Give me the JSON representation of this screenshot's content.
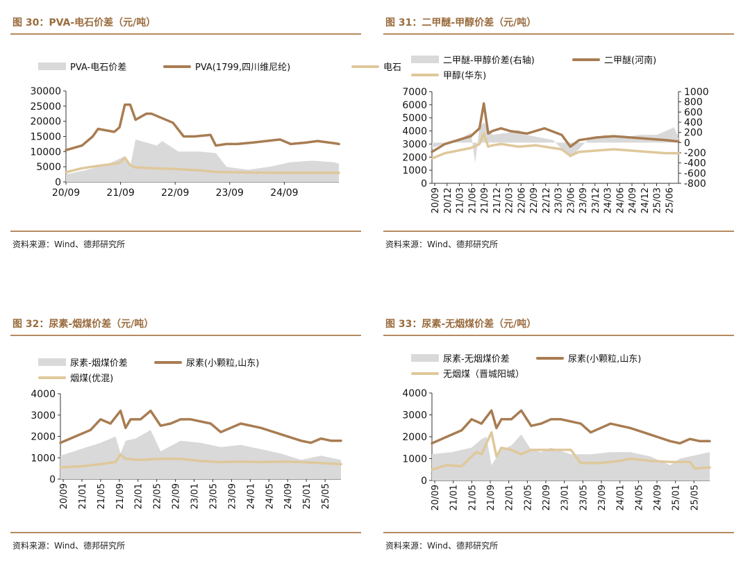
{
  "panels": {
    "p30": {
      "title": "图 30：PVA-电石价差（元/吨）",
      "source": "资料来源：Wind、德邦研究所"
    },
    "p31": {
      "title": "图 31：二甲醚-甲醇价差（元/吨）",
      "source": "资料来源：Wind、德邦研究所"
    },
    "p32": {
      "title": "图 32：尿素-烟煤价差（元/吨）",
      "source": "资料来源：Wind、德邦研究所"
    },
    "p33": {
      "title": "图 33：尿素-无烟煤价差（元/吨）",
      "source": "资料来源：Wind、德邦研究所"
    }
  },
  "colors": {
    "spread_fill": "#d9d9d9",
    "main_line": "#a87c52",
    "sub_line": "#dfc89b",
    "title": "#9a6c3e",
    "rule": "#b58a5f"
  },
  "chart_data": [
    {
      "id": "p30",
      "type": "area",
      "ylim": [
        0,
        30000
      ],
      "yticks": [
        0,
        5000,
        10000,
        15000,
        20000,
        25000,
        30000
      ],
      "xticks": [
        "20/09",
        "21/09",
        "22/09",
        "23/09",
        "24/09"
      ],
      "xtick_rotate": false,
      "series": [
        {
          "name": "PVA-电石价差",
          "kind": "area",
          "x": [
            0,
            4,
            8,
            11,
            12,
            13,
            17,
            18,
            21,
            25,
            28,
            30,
            34,
            38,
            42,
            46,
            50,
            51
          ],
          "values": [
            2500,
            4000,
            6000,
            8500,
            5000,
            14000,
            12000,
            13500,
            10000,
            10000,
            9500,
            5000,
            4000,
            5000,
            6500,
            7000,
            6500,
            6000
          ]
        },
        {
          "name": "PVA(1799,四川维尼纶)",
          "kind": "line",
          "x": [
            0,
            3,
            5,
            6,
            9,
            10,
            11,
            12,
            13,
            15,
            16,
            20,
            22,
            24,
            27,
            28,
            30,
            32,
            35,
            40,
            42,
            45,
            47,
            50,
            51
          ],
          "values": [
            10500,
            12000,
            15000,
            17500,
            16500,
            18000,
            25500,
            25500,
            20500,
            22500,
            22500,
            19500,
            15000,
            15000,
            15500,
            12000,
            12500,
            12500,
            13000,
            14000,
            12500,
            13000,
            13500,
            12800,
            12500
          ]
        },
        {
          "name": "电石",
          "kind": "line",
          "x": [
            0,
            3,
            6,
            9,
            10,
            11,
            12,
            13,
            16,
            20,
            25,
            28,
            35,
            40,
            45,
            51
          ],
          "values": [
            3200,
            4500,
            5300,
            6000,
            6300,
            8000,
            5500,
            4800,
            4500,
            4300,
            3800,
            3300,
            3100,
            3000,
            3000,
            3000
          ]
        }
      ],
      "n": 51
    },
    {
      "id": "p31",
      "type": "line",
      "ylim": [
        0,
        7000
      ],
      "yticks": [
        0,
        1000,
        2000,
        3000,
        4000,
        5000,
        6000,
        7000
      ],
      "y2lim": [
        -800,
        1000
      ],
      "y2ticks": [
        -800,
        -600,
        -400,
        -200,
        0,
        200,
        400,
        600,
        800,
        1000
      ],
      "xticks": [
        "20/09",
        "20/12",
        "21/03",
        "21/06",
        "21/09",
        "21/12",
        "22/03",
        "22/06",
        "22/09",
        "22/12",
        "23/03",
        "23/06",
        "23/09",
        "23/12",
        "24/03",
        "24/06",
        "24/09",
        "24/12",
        "25/03",
        "25/06"
      ],
      "xtick_rotate": true,
      "series": [
        {
          "name": "二甲醚-甲醇价差(右轴)",
          "kind": "area2",
          "x": [
            0,
            6,
            9,
            10,
            11,
            12,
            14,
            18,
            20,
            22,
            25,
            28,
            32,
            36,
            40,
            44,
            48,
            52,
            56,
            57
          ],
          "values": [
            -100,
            50,
            200,
            -400,
            300,
            400,
            150,
            200,
            250,
            150,
            100,
            50,
            -300,
            50,
            150,
            100,
            150,
            150,
            300,
            100
          ]
        },
        {
          "name": "二甲醚(河南)",
          "kind": "line",
          "x": [
            0,
            3,
            6,
            9,
            11,
            12,
            13,
            14,
            16,
            18,
            22,
            26,
            30,
            32,
            34,
            38,
            42,
            46,
            50,
            54,
            57
          ],
          "values": [
            2400,
            3000,
            3300,
            3600,
            4200,
            6100,
            3800,
            4000,
            4200,
            4000,
            3800,
            4200,
            3700,
            2800,
            3300,
            3500,
            3600,
            3500,
            3400,
            3300,
            3200
          ]
        },
        {
          "name": "甲醇(华东)",
          "kind": "line",
          "x": [
            0,
            3,
            6,
            9,
            11,
            12,
            13,
            14,
            16,
            20,
            24,
            28,
            30,
            32,
            34,
            38,
            42,
            46,
            50,
            54,
            57
          ],
          "values": [
            1900,
            2300,
            2500,
            2700,
            3000,
            3800,
            2800,
            2900,
            3000,
            2800,
            2900,
            2700,
            2600,
            2100,
            2400,
            2500,
            2600,
            2500,
            2400,
            2300,
            2300
          ]
        }
      ],
      "n": 57
    },
    {
      "id": "p32",
      "type": "area",
      "ylim": [
        0,
        4000
      ],
      "yticks": [
        0,
        1000,
        2000,
        3000,
        4000
      ],
      "xticks": [
        "20/09",
        "21/01",
        "21/05",
        "21/09",
        "22/01",
        "22/05",
        "22/09",
        "23/01",
        "23/05",
        "23/09",
        "24/01",
        "24/05",
        "24/09",
        "25/01",
        "25/05"
      ],
      "xtick_rotate": true,
      "series": [
        {
          "name": "尿素-烟煤价差",
          "kind": "area",
          "x": [
            0,
            4,
            8,
            11,
            12,
            13,
            15,
            18,
            20,
            24,
            28,
            32,
            36,
            40,
            44,
            48,
            52,
            56
          ],
          "values": [
            1100,
            1400,
            1700,
            2000,
            1200,
            1800,
            1900,
            2300,
            1300,
            1800,
            1700,
            1500,
            1600,
            1400,
            1200,
            900,
            1100,
            900
          ]
        },
        {
          "name": "尿素(小颗粒,山东)",
          "kind": "line",
          "x": [
            0,
            3,
            6,
            8,
            10,
            12,
            13,
            14,
            16,
            18,
            20,
            22,
            24,
            26,
            30,
            32,
            36,
            40,
            44,
            48,
            50,
            52,
            54,
            56
          ],
          "values": [
            1700,
            2000,
            2300,
            2800,
            2600,
            3200,
            2400,
            2800,
            2800,
            3200,
            2500,
            2600,
            2800,
            2800,
            2600,
            2200,
            2600,
            2400,
            2100,
            1800,
            1700,
            1900,
            1800,
            1800
          ]
        },
        {
          "name": "烟煤(优混)",
          "kind": "line",
          "x": [
            0,
            4,
            8,
            11,
            12,
            13,
            16,
            20,
            24,
            28,
            32,
            36,
            40,
            44,
            48,
            52,
            56
          ],
          "values": [
            550,
            600,
            700,
            800,
            1150,
            950,
            900,
            950,
            950,
            850,
            800,
            820,
            800,
            820,
            800,
            750,
            700
          ]
        }
      ],
      "n": 56
    },
    {
      "id": "p33",
      "type": "area",
      "ylim": [
        0,
        4000
      ],
      "yticks": [
        0,
        1000,
        2000,
        3000,
        4000
      ],
      "xticks": [
        "20/09",
        "21/01",
        "21/05",
        "21/09",
        "22/01",
        "22/05",
        "22/09",
        "23/01",
        "23/05",
        "23/09",
        "24/01",
        "24/05",
        "24/09",
        "25/01",
        "25/05"
      ],
      "xtick_rotate": true,
      "series": [
        {
          "name": "尿素-无烟煤价差",
          "kind": "area",
          "x": [
            0,
            4,
            8,
            10,
            11,
            12,
            14,
            16,
            18,
            20,
            22,
            24,
            28,
            32,
            36,
            40,
            44,
            48,
            50,
            52,
            54,
            56
          ],
          "values": [
            1200,
            1300,
            1500,
            1900,
            2000,
            700,
            1400,
            1600,
            2100,
            1400,
            1300,
            1500,
            1200,
            1200,
            1300,
            1300,
            1100,
            700,
            1000,
            1100,
            1200,
            1300
          ]
        },
        {
          "name": "尿素(小颗粒,山东)",
          "kind": "line",
          "x": [
            0,
            3,
            6,
            8,
            10,
            12,
            13,
            14,
            16,
            18,
            20,
            22,
            24,
            26,
            30,
            32,
            36,
            40,
            44,
            48,
            50,
            52,
            54,
            56
          ],
          "values": [
            1700,
            2000,
            2300,
            2800,
            2600,
            3200,
            2400,
            2800,
            2800,
            3200,
            2500,
            2600,
            2800,
            2800,
            2600,
            2200,
            2600,
            2400,
            2100,
            1800,
            1700,
            1900,
            1800,
            1800
          ]
        },
        {
          "name": "无烟煤（晋城阳城）",
          "kind": "line",
          "x": [
            0,
            3,
            6,
            8,
            9,
            10,
            12,
            13,
            14,
            16,
            18,
            20,
            24,
            28,
            30,
            34,
            38,
            40,
            44,
            48,
            52,
            53,
            56
          ],
          "values": [
            500,
            700,
            650,
            1100,
            1300,
            1200,
            2200,
            1100,
            1500,
            1400,
            1200,
            1400,
            1400,
            1400,
            800,
            800,
            900,
            1000,
            900,
            850,
            850,
            550,
            600
          ]
        }
      ],
      "n": 56
    }
  ]
}
